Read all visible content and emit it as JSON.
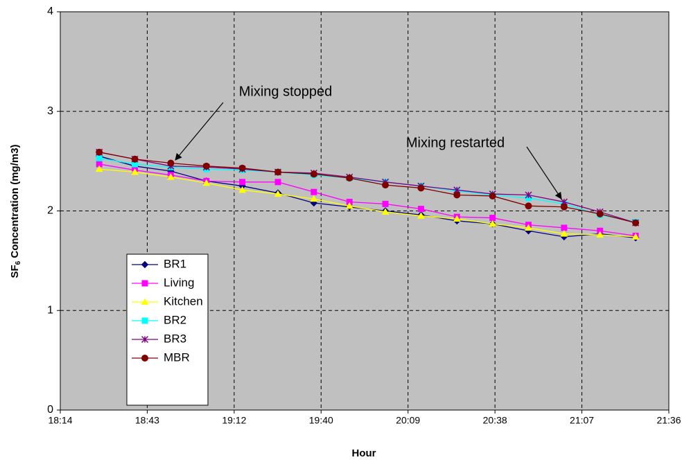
{
  "chart_data": {
    "type": "line",
    "ylabel": {
      "prefix": "SF",
      "subscript": "6",
      "suffix": " Concentration (mg/m3)"
    },
    "xlabel": "Hour",
    "x": [
      1107.3,
      1119.1,
      1131.0,
      1142.8,
      1154.7,
      1166.5,
      1178.4,
      1190.2,
      1202.1,
      1213.9,
      1225.8,
      1237.6,
      1249.5,
      1261.3,
      1273.2,
      1285.0
    ],
    "xlim": [
      1094.4,
      1296
    ],
    "xticks": [
      {
        "value": 1094.4,
        "label": "18:14"
      },
      {
        "value": 1123.2,
        "label": "18:43"
      },
      {
        "value": 1152,
        "label": "19:12"
      },
      {
        "value": 1180.8,
        "label": "19:40"
      },
      {
        "value": 1209.6,
        "label": "20:09"
      },
      {
        "value": 1238.4,
        "label": "20:38"
      },
      {
        "value": 1267.2,
        "label": "21:07"
      },
      {
        "value": 1296,
        "label": "21:36"
      }
    ],
    "ylim": [
      0,
      4
    ],
    "yticks": [
      0,
      1,
      2,
      3,
      4
    ],
    "grid": true,
    "series": [
      {
        "name": "BR1",
        "color": "#000080",
        "marker": "diamond",
        "values": [
          2.55,
          2.45,
          2.4,
          2.3,
          2.25,
          2.18,
          2.08,
          2.04,
          2.0,
          1.96,
          1.9,
          1.87,
          1.8,
          1.74,
          1.77,
          1.73
        ]
      },
      {
        "name": "Living",
        "color": "#ff00ff",
        "marker": "square",
        "values": [
          2.47,
          2.41,
          2.36,
          2.3,
          2.29,
          2.29,
          2.19,
          2.09,
          2.07,
          2.02,
          1.94,
          1.93,
          1.86,
          1.83,
          1.8,
          1.75
        ]
      },
      {
        "name": "Kitchen",
        "color": "#ffff00",
        "marker": "triangle",
        "values": [
          2.42,
          2.39,
          2.34,
          2.28,
          2.21,
          2.17,
          2.12,
          2.05,
          1.99,
          1.95,
          1.92,
          1.87,
          1.83,
          1.77,
          1.76,
          1.74
        ]
      },
      {
        "name": "BR2",
        "color": "#00ffff",
        "marker": "square",
        "values": [
          2.53,
          2.47,
          2.44,
          2.42,
          2.41,
          2.39,
          2.36,
          2.33,
          2.29,
          2.25,
          2.2,
          2.16,
          2.13,
          2.07,
          1.96,
          1.89
        ]
      },
      {
        "name": "BR3",
        "color": "#800080",
        "marker": "asterisk",
        "values": [
          2.59,
          2.52,
          2.45,
          2.44,
          2.42,
          2.39,
          2.38,
          2.34,
          2.29,
          2.25,
          2.21,
          2.17,
          2.16,
          2.09,
          1.99,
          1.88
        ]
      },
      {
        "name": "MBR",
        "color": "#800000",
        "marker": "circle",
        "values": [
          2.59,
          2.52,
          2.48,
          2.45,
          2.43,
          2.39,
          2.37,
          2.33,
          2.26,
          2.23,
          2.16,
          2.15,
          2.05,
          2.04,
          1.97,
          1.88
        ]
      }
    ],
    "annotations": [
      "Mixing stopped",
      "Mixing restarted"
    ]
  }
}
